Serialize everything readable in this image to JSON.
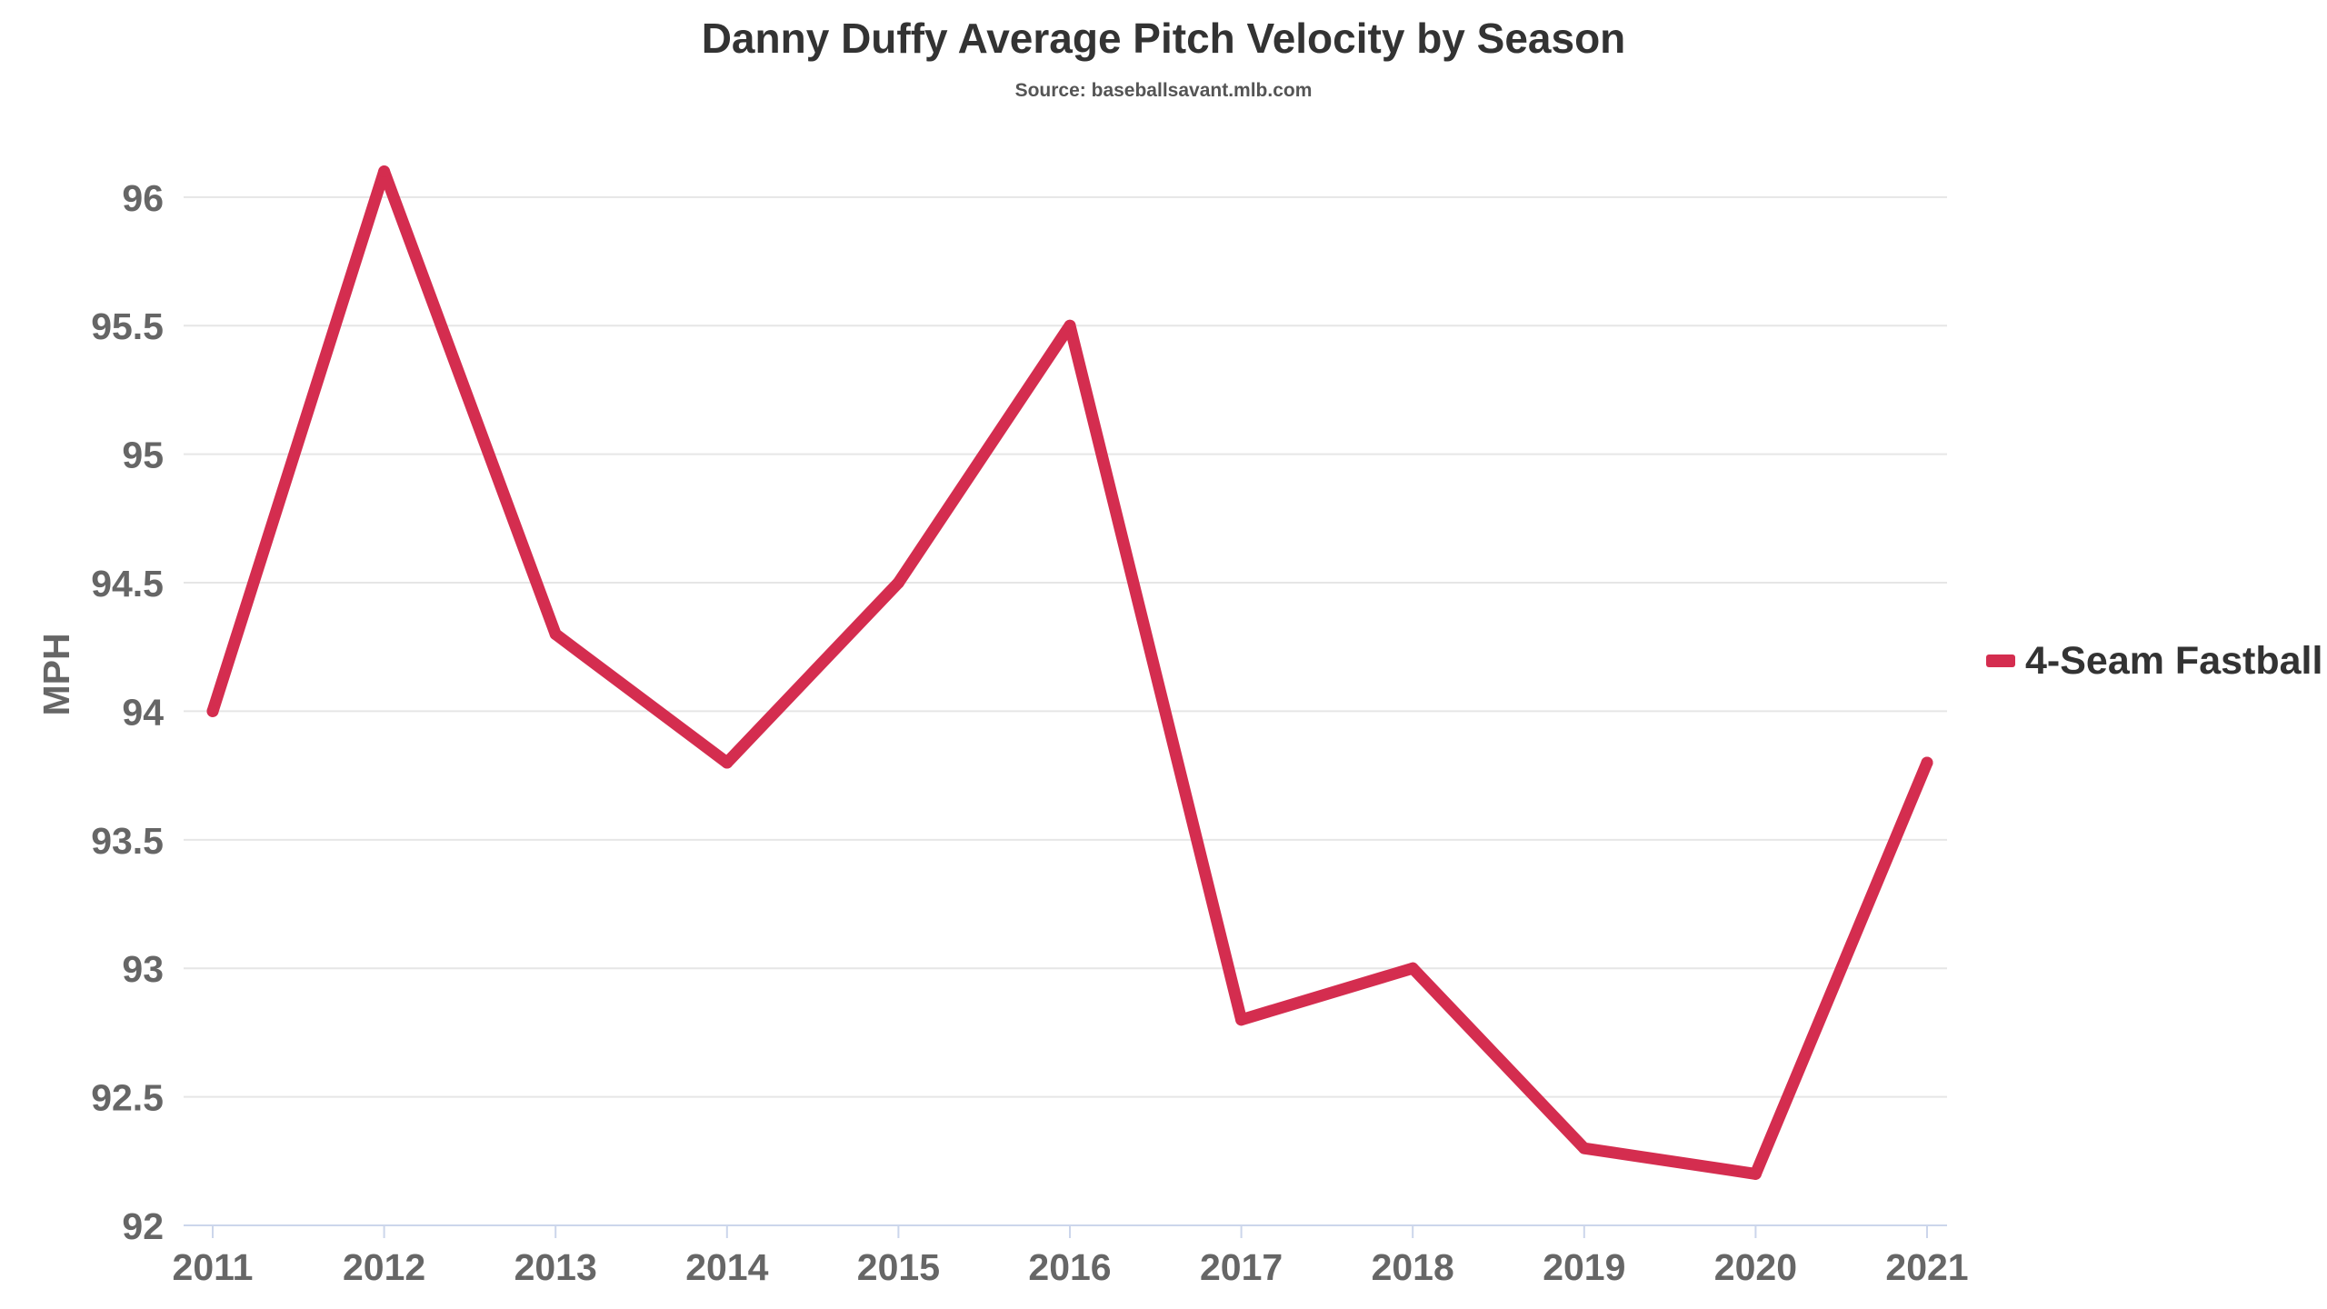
{
  "chart_data": {
    "type": "line",
    "title": "Danny Duffy Average Pitch Velocity by Season",
    "subtitle": "Source: baseballsavant.mlb.com",
    "xlabel": "",
    "ylabel": "MPH",
    "x": [
      "2011",
      "2012",
      "2013",
      "2014",
      "2015",
      "2016",
      "2017",
      "2018",
      "2019",
      "2020",
      "2021"
    ],
    "ylim": [
      92,
      96.3
    ],
    "yticks": [
      92,
      92.5,
      93,
      93.5,
      94,
      94.5,
      95,
      95.5,
      96
    ],
    "ytick_labels": [
      "92",
      "92.5",
      "93",
      "93.5",
      "94",
      "94.5",
      "95",
      "95.5",
      "96"
    ],
    "grid": true,
    "legend_position": "right",
    "series": [
      {
        "name": "4-Seam Fastball",
        "color": "#d42d4f",
        "values": [
          94.0,
          96.1,
          94.3,
          93.8,
          94.5,
          95.5,
          92.8,
          93.0,
          92.3,
          92.2,
          93.8
        ]
      }
    ]
  }
}
